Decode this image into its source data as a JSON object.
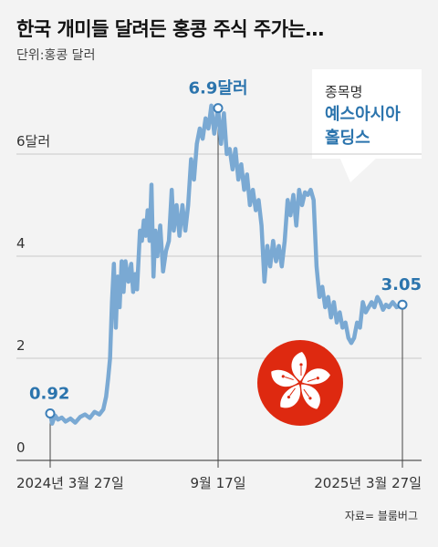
{
  "header": {
    "title": "한국 개미들 달려든 홍콩 주식 주가는…",
    "unit": "단위:홍콩 달러"
  },
  "callout": {
    "label": "종목명",
    "name": "예스아시아 홀딩스"
  },
  "source": "자료= 블룸버그",
  "icon": "hong-kong-flag-icon",
  "colors": {
    "line": "#7aa9d3",
    "label": "#2b74ad",
    "flag": "#de2910"
  },
  "chart_data": {
    "type": "line",
    "title": "한국 개미들 달려든 홍콩 주식 주가는…",
    "ylabel": "단위:홍콩 달러",
    "ylim": [
      0,
      7.8
    ],
    "yticks": [
      {
        "value": 0,
        "label": "0"
      },
      {
        "value": 2,
        "label": "2"
      },
      {
        "value": 4,
        "label": "4"
      },
      {
        "value": 6,
        "label": "6달러"
      }
    ],
    "xticks": [
      {
        "date": "2024-03-27",
        "label": "2024년 3월 27일"
      },
      {
        "date": "2024-09-17",
        "label": "9월 17일"
      },
      {
        "date": "2025-03-27",
        "label": "2025년 3월 27일"
      }
    ],
    "annotations": [
      {
        "date": "2024-03-27",
        "value": 0.92,
        "label": "0.92"
      },
      {
        "date": "2024-09-17",
        "value": 6.9,
        "label": "6.9달러"
      },
      {
        "date": "2025-03-27",
        "value": 3.05,
        "label": "3.05"
      }
    ],
    "grid": true,
    "series": [
      {
        "points": [
          [
            "2024-03-27",
            0.92
          ],
          [
            "2024-03-29",
            0.72
          ],
          [
            "2024-04-01",
            0.88
          ],
          [
            "2024-04-04",
            0.8
          ],
          [
            "2024-04-08",
            0.84
          ],
          [
            "2024-04-12",
            0.76
          ],
          [
            "2024-04-17",
            0.82
          ],
          [
            "2024-04-22",
            0.74
          ],
          [
            "2024-04-27",
            0.85
          ],
          [
            "2024-05-02",
            0.9
          ],
          [
            "2024-05-07",
            0.83
          ],
          [
            "2024-05-12",
            0.95
          ],
          [
            "2024-05-17",
            0.9
          ],
          [
            "2024-05-21",
            1.0
          ],
          [
            "2024-05-24",
            1.25
          ],
          [
            "2024-05-26",
            1.6
          ],
          [
            "2024-05-28",
            2.0
          ],
          [
            "2024-05-30",
            3.1
          ],
          [
            "2024-06-01",
            3.85
          ],
          [
            "2024-06-03",
            2.6
          ],
          [
            "2024-06-05",
            3.6
          ],
          [
            "2024-06-07",
            3.0
          ],
          [
            "2024-06-09",
            3.9
          ],
          [
            "2024-06-11",
            3.3
          ],
          [
            "2024-06-13",
            3.9
          ],
          [
            "2024-06-16",
            3.5
          ],
          [
            "2024-06-19",
            3.85
          ],
          [
            "2024-06-21",
            3.3
          ],
          [
            "2024-06-23",
            3.65
          ],
          [
            "2024-06-25",
            3.35
          ],
          [
            "2024-06-28",
            4.5
          ],
          [
            "2024-06-30",
            4.3
          ],
          [
            "2024-07-02",
            4.7
          ],
          [
            "2024-07-04",
            4.4
          ],
          [
            "2024-07-06",
            4.9
          ],
          [
            "2024-07-08",
            4.3
          ],
          [
            "2024-07-10",
            5.4
          ],
          [
            "2024-07-12",
            3.6
          ],
          [
            "2024-07-14",
            4.5
          ],
          [
            "2024-07-16",
            4.0
          ],
          [
            "2024-07-19",
            4.6
          ],
          [
            "2024-07-22",
            3.7
          ],
          [
            "2024-07-25",
            4.1
          ],
          [
            "2024-07-28",
            4.3
          ],
          [
            "2024-07-31",
            5.3
          ],
          [
            "2024-08-02",
            4.5
          ],
          [
            "2024-08-05",
            5.0
          ],
          [
            "2024-08-08",
            4.4
          ],
          [
            "2024-08-11",
            5.0
          ],
          [
            "2024-08-14",
            4.5
          ],
          [
            "2024-08-17",
            5.0
          ],
          [
            "2024-08-20",
            5.9
          ],
          [
            "2024-08-23",
            5.5
          ],
          [
            "2024-08-26",
            6.2
          ],
          [
            "2024-08-29",
            6.5
          ],
          [
            "2024-09-01",
            6.3
          ],
          [
            "2024-09-04",
            6.7
          ],
          [
            "2024-09-07",
            6.5
          ],
          [
            "2024-09-10",
            6.95
          ],
          [
            "2024-09-13",
            6.4
          ],
          [
            "2024-09-17",
            6.9
          ],
          [
            "2024-09-20",
            6.2
          ],
          [
            "2024-09-23",
            6.8
          ],
          [
            "2024-09-26",
            6.0
          ],
          [
            "2024-09-29",
            6.1
          ],
          [
            "2024-10-02",
            5.7
          ],
          [
            "2024-10-05",
            6.1
          ],
          [
            "2024-10-08",
            5.5
          ],
          [
            "2024-10-11",
            5.8
          ],
          [
            "2024-10-14",
            5.3
          ],
          [
            "2024-10-17",
            5.6
          ],
          [
            "2024-10-20",
            5.0
          ],
          [
            "2024-10-23",
            5.3
          ],
          [
            "2024-10-26",
            4.9
          ],
          [
            "2024-10-29",
            5.1
          ],
          [
            "2024-11-01",
            4.6
          ],
          [
            "2024-11-04",
            3.5
          ],
          [
            "2024-11-07",
            4.2
          ],
          [
            "2024-11-10",
            3.8
          ],
          [
            "2024-11-13",
            4.3
          ],
          [
            "2024-11-16",
            3.9
          ],
          [
            "2024-11-19",
            4.2
          ],
          [
            "2024-11-22",
            3.8
          ],
          [
            "2024-11-25",
            4.3
          ],
          [
            "2024-11-28",
            5.1
          ],
          [
            "2024-12-01",
            4.8
          ],
          [
            "2024-12-04",
            5.2
          ],
          [
            "2024-12-07",
            4.6
          ],
          [
            "2024-12-10",
            5.3
          ],
          [
            "2024-12-13",
            5.0
          ],
          [
            "2024-12-16",
            5.25
          ],
          [
            "2024-12-19",
            5.2
          ],
          [
            "2024-12-22",
            5.3
          ],
          [
            "2024-12-25",
            5.1
          ],
          [
            "2024-12-28",
            3.8
          ],
          [
            "2024-12-31",
            3.2
          ],
          [
            "2025-01-03",
            3.4
          ],
          [
            "2025-01-06",
            3.0
          ],
          [
            "2025-01-09",
            3.2
          ],
          [
            "2025-01-12",
            2.8
          ],
          [
            "2025-01-15",
            3.1
          ],
          [
            "2025-01-18",
            2.7
          ],
          [
            "2025-01-21",
            2.9
          ],
          [
            "2025-01-24",
            2.6
          ],
          [
            "2025-01-27",
            2.7
          ],
          [
            "2025-01-30",
            2.4
          ],
          [
            "2025-02-02",
            2.3
          ],
          [
            "2025-02-05",
            2.4
          ],
          [
            "2025-02-08",
            2.7
          ],
          [
            "2025-02-11",
            2.6
          ],
          [
            "2025-02-14",
            3.1
          ],
          [
            "2025-02-17",
            2.9
          ],
          [
            "2025-02-20",
            3.0
          ],
          [
            "2025-02-23",
            3.1
          ],
          [
            "2025-02-26",
            3.0
          ],
          [
            "2025-03-01",
            3.2
          ],
          [
            "2025-03-04",
            3.1
          ],
          [
            "2025-03-07",
            2.95
          ],
          [
            "2025-03-10",
            3.05
          ],
          [
            "2025-03-13",
            3.0
          ],
          [
            "2025-03-17",
            3.1
          ],
          [
            "2025-03-21",
            3.0
          ],
          [
            "2025-03-27",
            3.05
          ]
        ]
      }
    ]
  }
}
